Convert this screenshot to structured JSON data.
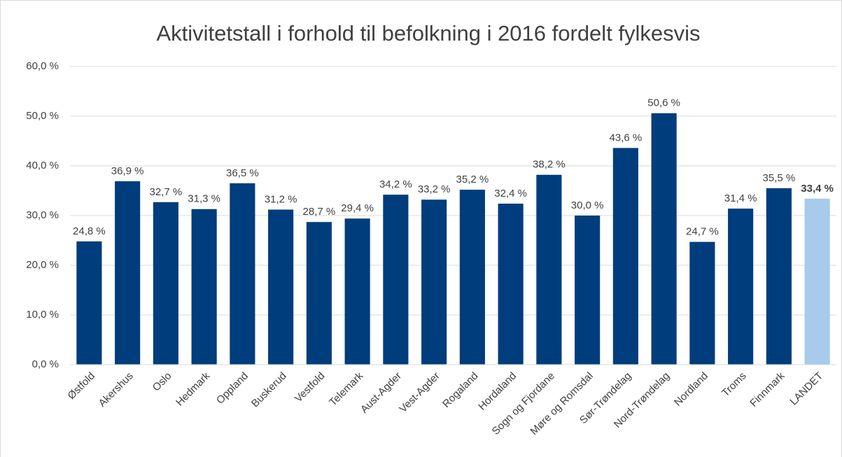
{
  "chart_data": {
    "type": "bar",
    "title": "Aktivitetstall i forhold til befolkning i 2016 fordelt fylkesvis",
    "categories": [
      "Østfold",
      "Akershus",
      "Oslo",
      "Hedmark",
      "Oppland",
      "Buskerud",
      "Vestfold",
      "Telemark",
      "Aust-Agder",
      "Vest-Agder",
      "Rogaland",
      "Hordaland",
      "Sogn og Fjordane",
      "Møre og Romsdal",
      "Sør-Trøndelag",
      "Nord-Trøndelag",
      "Nordland",
      "Troms",
      "Finnmark",
      "LANDET"
    ],
    "values": [
      24.8,
      36.9,
      32.7,
      31.3,
      36.5,
      31.2,
      28.7,
      29.4,
      34.2,
      33.2,
      35.2,
      32.4,
      38.2,
      30.0,
      43.6,
      50.6,
      24.7,
      31.4,
      35.5,
      33.4
    ],
    "value_labels": [
      "24,8 %",
      "36,9 %",
      "32,7 %",
      "31,3 %",
      "36,5 %",
      "31,2 %",
      "28,7 %",
      "29,4 %",
      "34,2 %",
      "33,2 %",
      "35,2 %",
      "32,4 %",
      "38,2 %",
      "30,0 %",
      "43,6 %",
      "50,6 %",
      "24,7 %",
      "31,4 %",
      "35,5 %",
      "33,4 %"
    ],
    "colors": [
      "#003d7c",
      "#003d7c",
      "#003d7c",
      "#003d7c",
      "#003d7c",
      "#003d7c",
      "#003d7c",
      "#003d7c",
      "#003d7c",
      "#003d7c",
      "#003d7c",
      "#003d7c",
      "#003d7c",
      "#003d7c",
      "#003d7c",
      "#003d7c",
      "#003d7c",
      "#003d7c",
      "#003d7c",
      "#a6cbeb"
    ],
    "ylim": [
      0,
      60
    ],
    "yticks": [
      {
        "value": 0,
        "label": "0,0 %"
      },
      {
        "value": 10,
        "label": "10,0 %"
      },
      {
        "value": 20,
        "label": "20,0 %"
      },
      {
        "value": 30,
        "label": "30,0 %"
      },
      {
        "value": 40,
        "label": "40,0 %"
      },
      {
        "value": 50,
        "label": "50,0 %"
      },
      {
        "value": 60,
        "label": "60,0 %"
      }
    ],
    "grid": true
  }
}
